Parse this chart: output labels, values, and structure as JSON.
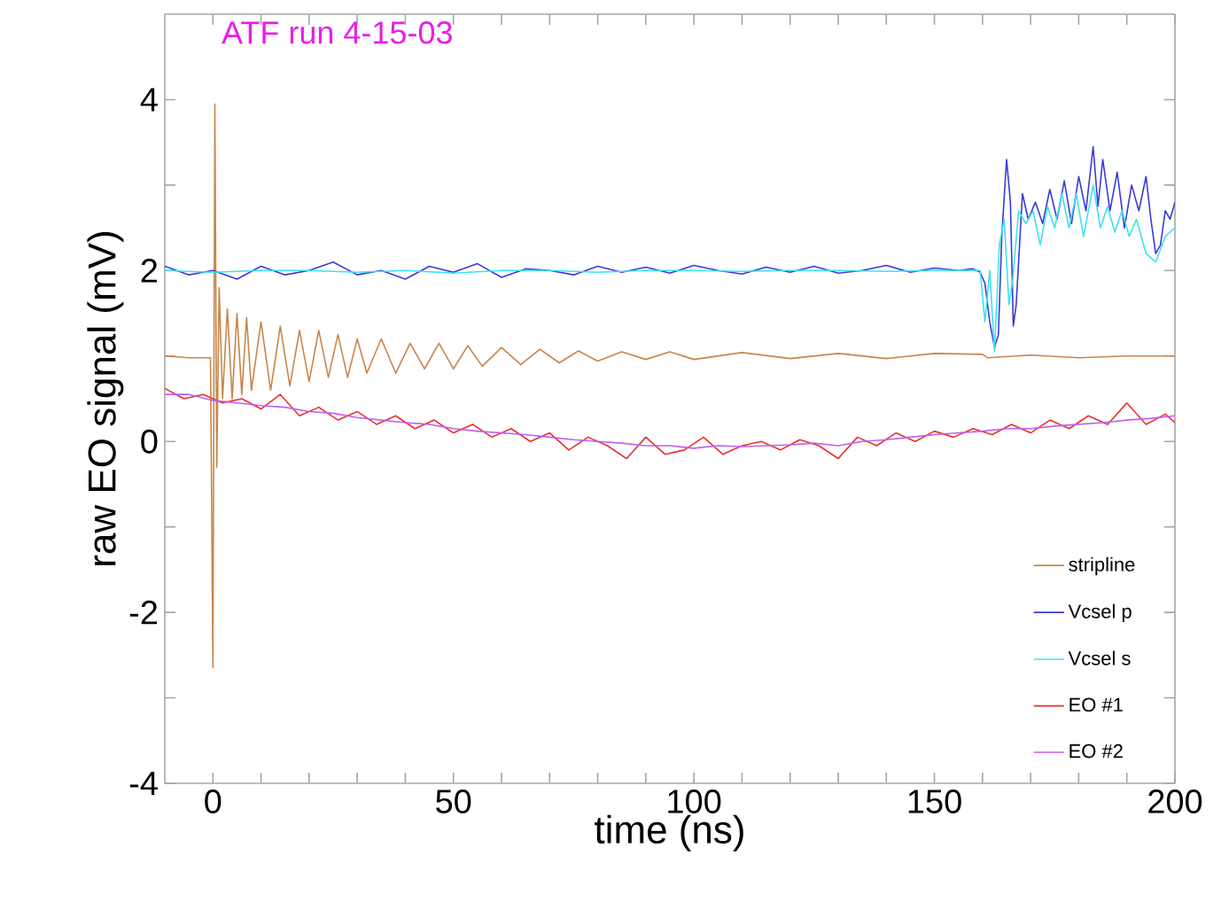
{
  "chart_data": {
    "type": "line",
    "title": "ATF run 4-15-03",
    "xlabel": "time (ns)",
    "ylabel": "raw  EO signal   (mV)",
    "xlim": [
      -10,
      200
    ],
    "ylim": [
      -4,
      5
    ],
    "xticks": [
      {
        "value": 0,
        "label": "0"
      },
      {
        "value": 10,
        "label": null
      },
      {
        "value": 20,
        "label": null
      },
      {
        "value": 30,
        "label": null
      },
      {
        "value": 40,
        "label": null
      },
      {
        "value": 50,
        "label": "50"
      },
      {
        "value": 60,
        "label": null
      },
      {
        "value": 70,
        "label": null
      },
      {
        "value": 80,
        "label": null
      },
      {
        "value": 90,
        "label": null
      },
      {
        "value": 100,
        "label": "100"
      },
      {
        "value": 110,
        "label": null
      },
      {
        "value": 120,
        "label": null
      },
      {
        "value": 130,
        "label": null
      },
      {
        "value": 140,
        "label": null
      },
      {
        "value": 150,
        "label": "150"
      },
      {
        "value": 160,
        "label": null
      },
      {
        "value": 170,
        "label": null
      },
      {
        "value": 180,
        "label": null
      },
      {
        "value": 190,
        "label": null
      },
      {
        "value": 200,
        "label": "200"
      }
    ],
    "yticks": [
      -4,
      {
        "value": -3,
        "label": null
      },
      -2,
      {
        "value": -1,
        "label": null
      },
      0,
      {
        "value": 1,
        "label": null
      },
      2,
      {
        "value": 3,
        "label": null
      },
      4
    ],
    "grid": false,
    "legend": "bottom right",
    "marker": "none",
    "line_style": "solid",
    "series": [
      {
        "name": "stripline",
        "color": "#c8864a",
        "x": [
          -10,
          -5,
          -0.5,
          0,
          0.4,
          0.8,
          1.3,
          2,
          3,
          4,
          5,
          6,
          7,
          8,
          10,
          12,
          14,
          16,
          18,
          20,
          22,
          24,
          26,
          28,
          30,
          32,
          35,
          38,
          41,
          44,
          47,
          50,
          53,
          56,
          60,
          64,
          68,
          72,
          76,
          80,
          85,
          90,
          95,
          100,
          110,
          120,
          130,
          140,
          150,
          160,
          161,
          170,
          180,
          190,
          200
        ],
        "values": [
          1.0,
          0.98,
          0.98,
          -2.65,
          3.95,
          -0.3,
          1.8,
          0.5,
          1.55,
          0.5,
          1.5,
          0.55,
          1.45,
          0.6,
          1.4,
          0.6,
          1.35,
          0.65,
          1.3,
          0.7,
          1.3,
          0.75,
          1.25,
          0.75,
          1.2,
          0.8,
          1.2,
          0.8,
          1.15,
          0.85,
          1.15,
          0.85,
          1.12,
          0.88,
          1.1,
          0.9,
          1.08,
          0.92,
          1.06,
          0.94,
          1.05,
          0.96,
          1.05,
          0.96,
          1.04,
          0.97,
          1.03,
          0.97,
          1.03,
          1.02,
          0.98,
          1.01,
          0.98,
          1.0,
          1.0
        ]
      },
      {
        "name": "Vcsel p",
        "color": "#3a3ad8",
        "x": [
          -10,
          -5,
          0,
          5,
          10,
          15,
          20,
          25,
          30,
          35,
          40,
          45,
          50,
          55,
          60,
          65,
          70,
          75,
          80,
          85,
          90,
          95,
          100,
          105,
          110,
          115,
          120,
          125,
          130,
          135,
          140,
          145,
          150,
          155,
          158,
          159.5,
          160.5,
          161.5,
          162.5,
          163.3,
          164,
          165,
          165.8,
          166.4,
          167,
          168.3,
          169.5,
          171,
          172.5,
          174,
          175.5,
          177,
          178.5,
          180,
          181.5,
          183,
          184,
          185,
          186.5,
          188,
          189.5,
          191,
          192.5,
          194,
          195,
          196,
          197,
          198,
          199,
          200
        ],
        "values": [
          2.05,
          1.95,
          2.0,
          1.9,
          2.05,
          1.95,
          2.0,
          2.1,
          1.95,
          2.0,
          1.9,
          2.05,
          1.98,
          2.08,
          1.92,
          2.02,
          2.0,
          1.95,
          2.05,
          1.98,
          2.04,
          1.97,
          2.06,
          2.0,
          1.96,
          2.04,
          1.98,
          2.05,
          1.97,
          2.0,
          2.06,
          1.98,
          2.03,
          2.0,
          2.02,
          1.98,
          1.85,
          1.4,
          1.1,
          1.25,
          2.4,
          3.3,
          2.8,
          1.35,
          1.6,
          2.9,
          2.6,
          2.8,
          2.55,
          2.95,
          2.6,
          3.05,
          2.55,
          3.1,
          2.7,
          3.45,
          2.75,
          3.3,
          2.7,
          3.15,
          2.5,
          3.0,
          2.7,
          3.1,
          2.6,
          2.2,
          2.3,
          2.7,
          2.6,
          2.8
        ]
      },
      {
        "name": "Vcsel s",
        "color": "#40e0f0",
        "x": [
          -10,
          0,
          10,
          20,
          30,
          40,
          50,
          60,
          70,
          80,
          90,
          100,
          110,
          120,
          130,
          140,
          150,
          158,
          159.5,
          160.5,
          161.5,
          162.5,
          163.5,
          164.5,
          165.5,
          166.3,
          167.5,
          169,
          170.5,
          172,
          173.5,
          175,
          176.5,
          178,
          179.5,
          181,
          183,
          184.5,
          186,
          187.5,
          189,
          190.5,
          192,
          194,
          196,
          198,
          200
        ],
        "values": [
          2.0,
          1.98,
          2.0,
          2.0,
          1.98,
          2.0,
          1.97,
          2.0,
          2.0,
          1.98,
          2.0,
          2.0,
          1.99,
          2.0,
          2.0,
          1.99,
          2.0,
          2.0,
          2.0,
          1.4,
          2.0,
          1.05,
          2.3,
          2.6,
          1.6,
          1.9,
          2.7,
          2.55,
          2.7,
          2.3,
          2.75,
          2.5,
          2.9,
          2.5,
          2.9,
          2.4,
          3.0,
          2.5,
          2.75,
          2.45,
          2.7,
          2.4,
          2.6,
          2.2,
          2.1,
          2.4,
          2.5
        ]
      },
      {
        "name": "EO #1",
        "color": "#e83030",
        "x": [
          -10,
          -6,
          -2,
          2,
          6,
          10,
          14,
          18,
          22,
          26,
          30,
          34,
          38,
          42,
          46,
          50,
          54,
          58,
          62,
          66,
          70,
          74,
          78,
          82,
          86,
          90,
          94,
          98,
          102,
          106,
          110,
          114,
          118,
          122,
          126,
          130,
          134,
          138,
          142,
          146,
          150,
          154,
          158,
          162,
          166,
          170,
          174,
          178,
          182,
          186,
          190,
          194,
          198,
          200
        ],
        "values": [
          0.62,
          0.5,
          0.55,
          0.45,
          0.5,
          0.38,
          0.55,
          0.3,
          0.4,
          0.25,
          0.35,
          0.2,
          0.3,
          0.15,
          0.25,
          0.1,
          0.2,
          0.05,
          0.15,
          0.0,
          0.1,
          -0.1,
          0.05,
          -0.05,
          -0.2,
          0.05,
          -0.15,
          -0.1,
          0.05,
          -0.15,
          -0.05,
          0.0,
          -0.1,
          0.02,
          -0.05,
          -0.2,
          0.05,
          -0.05,
          0.1,
          0.0,
          0.12,
          0.05,
          0.15,
          0.08,
          0.2,
          0.1,
          0.25,
          0.15,
          0.3,
          0.2,
          0.45,
          0.2,
          0.32,
          0.22
        ]
      },
      {
        "name": "EO #2",
        "color": "#c060f0",
        "x": [
          -10,
          -5,
          0,
          5,
          10,
          15,
          20,
          25,
          30,
          35,
          40,
          45,
          50,
          55,
          60,
          65,
          70,
          75,
          80,
          85,
          90,
          95,
          100,
          105,
          110,
          115,
          120,
          125,
          130,
          135,
          140,
          145,
          150,
          155,
          160,
          165,
          170,
          175,
          180,
          185,
          190,
          195,
          200
        ],
        "values": [
          0.55,
          0.55,
          0.48,
          0.45,
          0.42,
          0.4,
          0.35,
          0.33,
          0.28,
          0.25,
          0.22,
          0.2,
          0.15,
          0.12,
          0.1,
          0.08,
          0.05,
          0.02,
          0.0,
          -0.02,
          -0.05,
          -0.05,
          -0.08,
          -0.05,
          -0.06,
          -0.05,
          -0.04,
          -0.02,
          -0.05,
          0.0,
          0.02,
          0.05,
          0.08,
          0.1,
          0.12,
          0.15,
          0.15,
          0.18,
          0.2,
          0.22,
          0.25,
          0.27,
          0.3
        ]
      }
    ]
  }
}
